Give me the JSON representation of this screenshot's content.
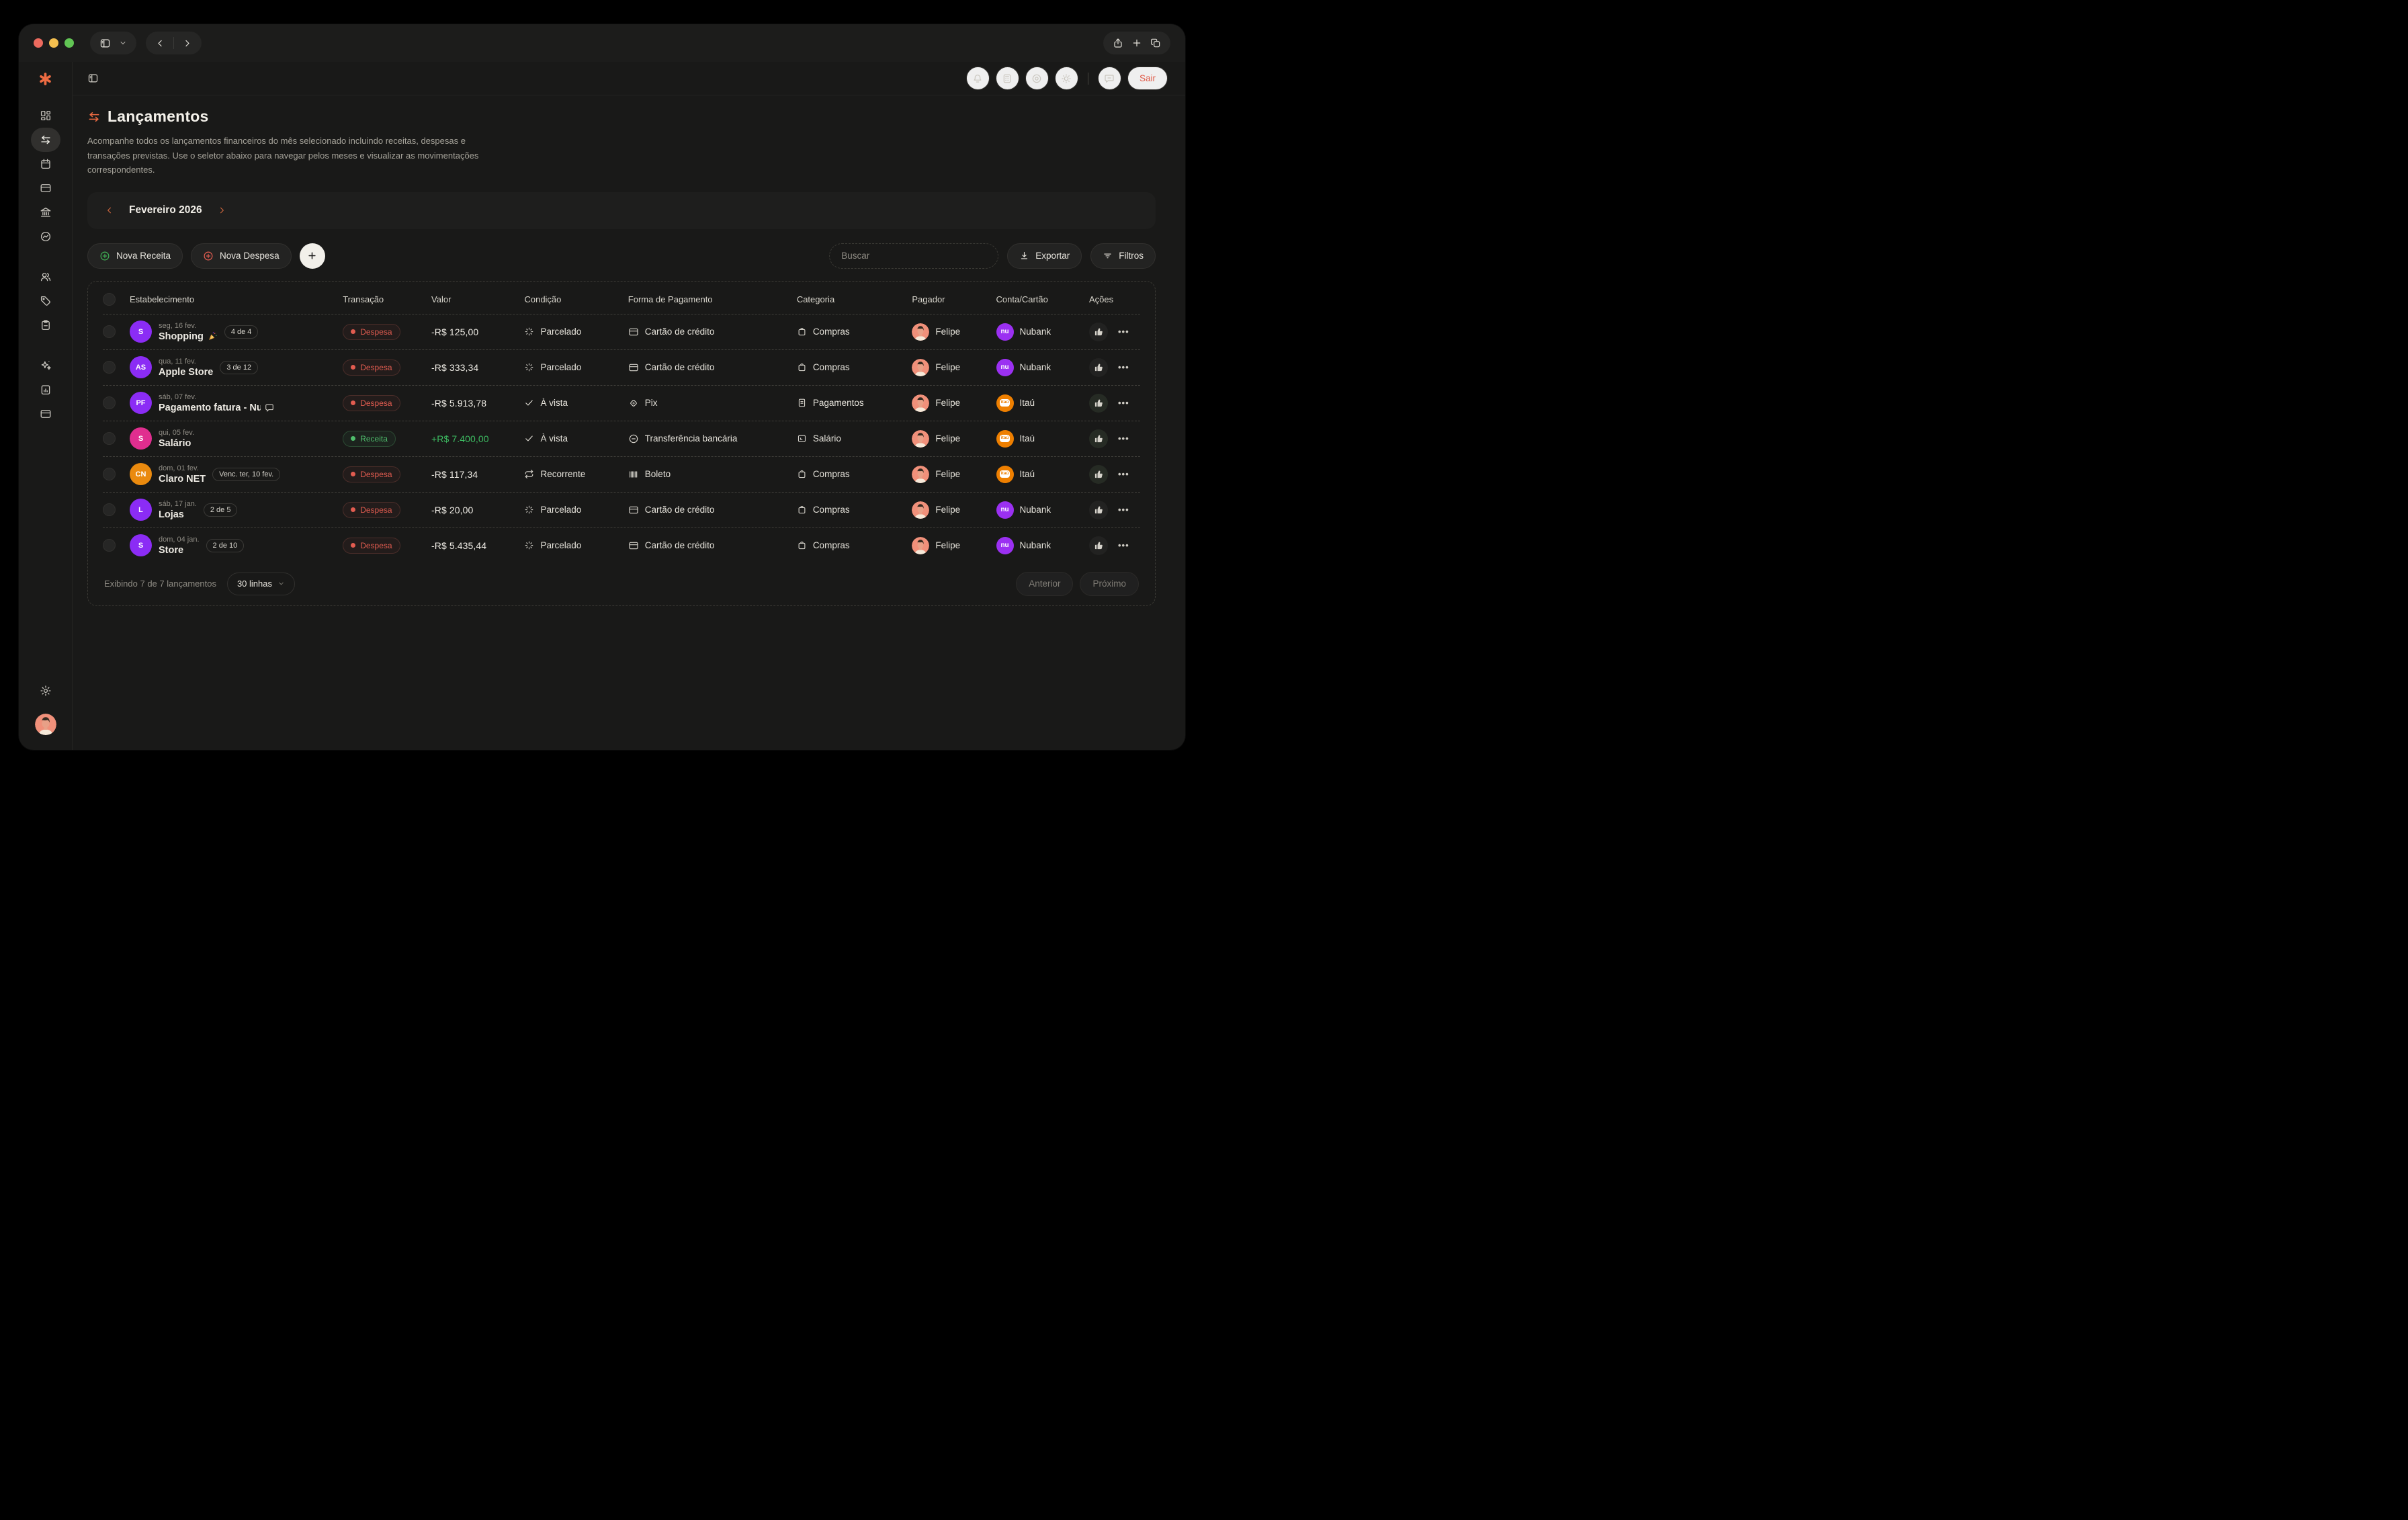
{
  "chrome": {
    "traffic_lights": [
      "close",
      "minimize",
      "zoom"
    ],
    "left_icons": [
      "sidebar-toggle-icon",
      "chevron-down-icon",
      "back-icon",
      "forward-icon"
    ],
    "right_icons": [
      "share-icon",
      "new-tab-icon",
      "tabs-overview-icon"
    ]
  },
  "topbar": {
    "collapse_icon": "panel-collapse-icon",
    "icons": [
      {
        "icon": "bell",
        "name": "notifications"
      },
      {
        "icon": "calc",
        "name": "calculator"
      },
      {
        "icon": "eye",
        "name": "privacy"
      },
      {
        "icon": "sun",
        "name": "theme"
      }
    ],
    "icons_after_divider": [
      {
        "icon": "chat",
        "name": "feedback"
      }
    ],
    "logout_label": "Sair"
  },
  "sidebar": {
    "logo_icon": "asterisk-logo",
    "items": [
      {
        "icon": "grid",
        "name": "dashboard",
        "active": false,
        "group": 1
      },
      {
        "icon": "arrows",
        "name": "lancamentos",
        "active": true,
        "group": 1
      },
      {
        "icon": "cal",
        "name": "calendario",
        "active": false,
        "group": 1
      },
      {
        "icon": "card",
        "name": "cartoes",
        "active": false,
        "group": 1
      },
      {
        "icon": "bank",
        "name": "bancos",
        "active": false,
        "group": 1
      },
      {
        "icon": "trend",
        "name": "investimentos",
        "active": false,
        "group": 1
      },
      {
        "icon": "users",
        "name": "usuarios",
        "active": false,
        "group": 2
      },
      {
        "icon": "tag",
        "name": "categorias",
        "active": false,
        "group": 2
      },
      {
        "icon": "clip",
        "name": "planejamento",
        "active": false,
        "group": 2
      },
      {
        "icon": "spark",
        "name": "assistente",
        "active": false,
        "group": 3
      },
      {
        "icon": "docchart",
        "name": "relatorios",
        "active": false,
        "group": 3
      },
      {
        "icon": "card",
        "name": "contas",
        "active": false,
        "group": 3
      }
    ],
    "bottom": {
      "settings_icon": "gear",
      "avatar": "user-avatar"
    }
  },
  "page": {
    "title": "Lançamentos",
    "title_icon": "arrows-icon",
    "description": "Acompanhe todos os lançamentos financeiros do mês selecionado incluindo receitas, despesas e transações previstas. Use o seletor abaixo para navegar pelos meses e visualizar as movimentações correspondentes.",
    "month": {
      "prev_icon": "chevron-left-icon",
      "label": "Fevereiro 2026",
      "next_icon": "chevron-right-icon"
    },
    "actions": {
      "new_income": "Nova Receita",
      "new_expense": "Nova Despesa",
      "add_icon": "plus-icon",
      "search_placeholder": "Buscar",
      "export": "Exportar",
      "filters": "Filtros"
    }
  },
  "table": {
    "columns": [
      "Estabelecimento",
      "Transação",
      "Valor",
      "Condição",
      "Forma de Pagamento",
      "Categoria",
      "Pagador",
      "Conta/Cartão",
      "Ações"
    ],
    "rows": [
      {
        "initials": "S",
        "avatar_color": "#8b2cf5",
        "date": "seg, 16 fev.",
        "name": "Shopping",
        "party": true,
        "comment": false,
        "badge": "4 de 4",
        "type": "Despesa",
        "value": "-R$ 125,00",
        "positive": false,
        "condition": "Parcelado",
        "cond_icon": "loader",
        "payment": "Cartão de crédito",
        "pay_icon": "card",
        "category": "Compras",
        "cat_icon": "bag",
        "payer": "Felipe",
        "account": "Nubank",
        "account_logo": "nubank",
        "confirmed": false
      },
      {
        "initials": "AS",
        "avatar_color": "#8b2cf5",
        "date": "qua, 11 fev.",
        "name": "Apple Store",
        "party": false,
        "comment": false,
        "badge": "3 de 12",
        "type": "Despesa",
        "value": "-R$ 333,34",
        "positive": false,
        "condition": "Parcelado",
        "cond_icon": "loader",
        "payment": "Cartão de crédito",
        "pay_icon": "card",
        "category": "Compras",
        "cat_icon": "bag",
        "payer": "Felipe",
        "account": "Nubank",
        "account_logo": "nubank",
        "confirmed": false
      },
      {
        "initials": "PF",
        "avatar_color": "#8b2cf5",
        "date": "sáb, 07 fev.",
        "name": "Pagamento fatura - Nuba",
        "party": false,
        "comment": true,
        "badge": "",
        "type": "Despesa",
        "value": "-R$ 5.913,78",
        "positive": false,
        "condition": "À vista",
        "cond_icon": "check",
        "payment": "Pix",
        "pay_icon": "pix",
        "category": "Pagamentos",
        "cat_icon": "doc",
        "payer": "Felipe",
        "account": "Itaú",
        "account_logo": "itau",
        "confirmed": true
      },
      {
        "initials": "S",
        "avatar_color": "#e02e8f",
        "date": "qui, 05 fev.",
        "name": "Salário",
        "party": false,
        "comment": false,
        "badge": "",
        "type": "Receita",
        "value": "+R$ 7.400,00",
        "positive": true,
        "condition": "À vista",
        "cond_icon": "check",
        "payment": "Transferência bancária",
        "pay_icon": "transfer",
        "category": "Salário",
        "cat_icon": "wallet",
        "payer": "Felipe",
        "account": "Itaú",
        "account_logo": "itau",
        "confirmed": true
      },
      {
        "initials": "CN",
        "avatar_color": "#ea8a0e",
        "date": "dom, 01 fev.",
        "name": "Claro NET",
        "party": false,
        "comment": false,
        "badge": "Venc. ter, 10 fev.",
        "type": "Despesa",
        "value": "-R$ 117,34",
        "positive": false,
        "condition": "Recorrente",
        "cond_icon": "repeat",
        "payment": "Boleto",
        "pay_icon": "barcode",
        "category": "Compras",
        "cat_icon": "bag",
        "payer": "Felipe",
        "account": "Itaú",
        "account_logo": "itau",
        "confirmed": true
      },
      {
        "initials": "L",
        "avatar_color": "#8b2cf5",
        "date": "sáb, 17 jan.",
        "name": "Lojas",
        "party": false,
        "comment": false,
        "badge": "2 de 5",
        "type": "Despesa",
        "value": "-R$ 20,00",
        "positive": false,
        "condition": "Parcelado",
        "cond_icon": "loader",
        "payment": "Cartão de crédito",
        "pay_icon": "card",
        "category": "Compras",
        "cat_icon": "bag",
        "payer": "Felipe",
        "account": "Nubank",
        "account_logo": "nubank",
        "confirmed": false
      },
      {
        "initials": "S",
        "avatar_color": "#8b2cf5",
        "date": "dom, 04 jan.",
        "name": "Store",
        "party": false,
        "comment": false,
        "badge": "2 de 10",
        "type": "Despesa",
        "value": "-R$ 5.435,44",
        "positive": false,
        "condition": "Parcelado",
        "cond_icon": "loader",
        "payment": "Cartão de crédito",
        "pay_icon": "card",
        "category": "Compras",
        "cat_icon": "bag",
        "payer": "Felipe",
        "account": "Nubank",
        "account_logo": "nubank",
        "confirmed": false
      }
    ],
    "footer": {
      "summary": "Exibindo 7 de 7 lançamentos",
      "rows_per_page": "30 linhas",
      "prev": "Anterior",
      "next": "Próximo"
    }
  },
  "colors": {
    "brand_orange": "#ed6b42",
    "expense_red": "#e25c50",
    "income_green": "#4fbe6c",
    "positive_amount": "#3dbd62",
    "nubank_purple": "#9b30f2",
    "itau_orange": "#ee7f00"
  }
}
